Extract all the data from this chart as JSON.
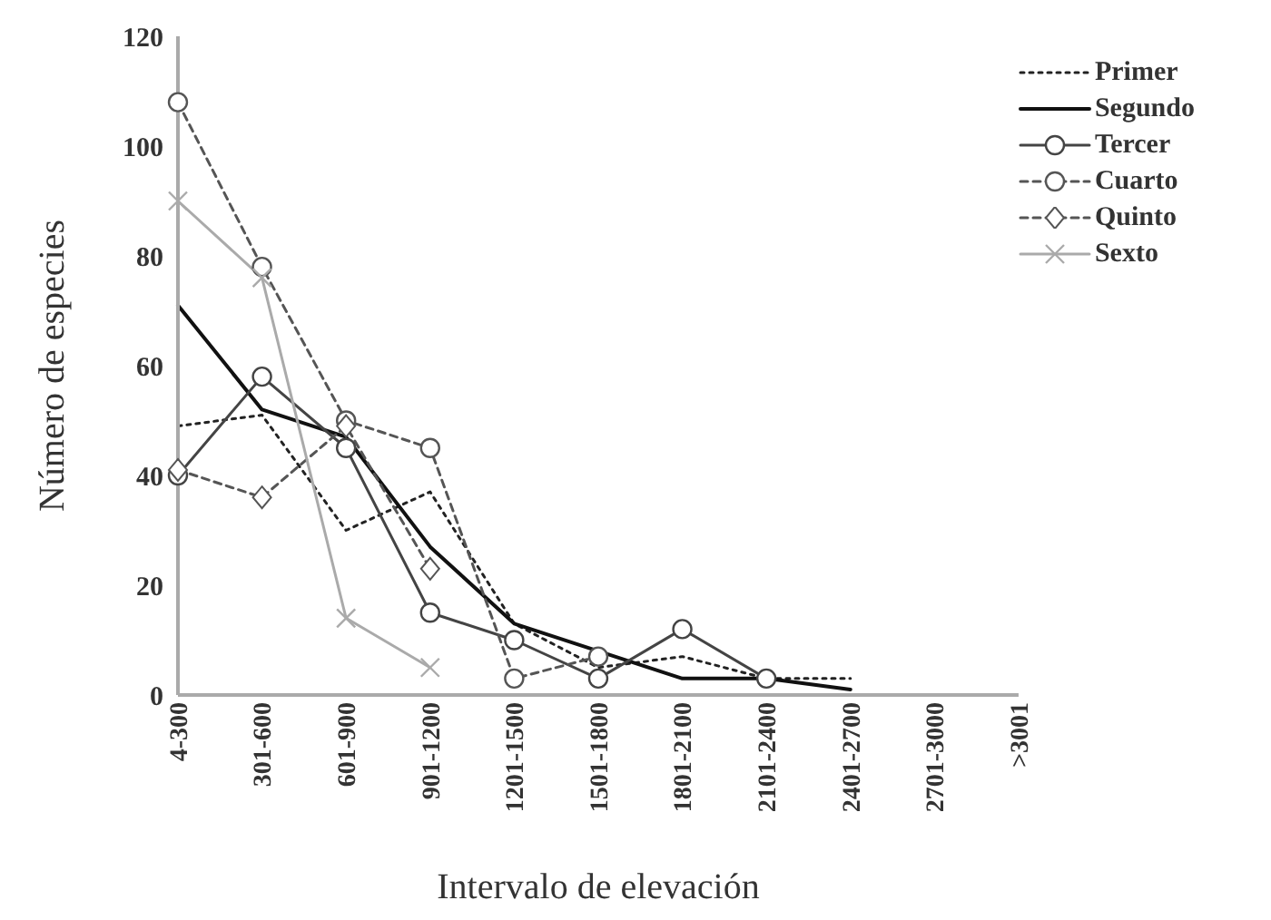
{
  "chart_data": {
    "type": "line",
    "xlabel": "Intervalo de elevación",
    "ylabel": "Número de especies",
    "categories": [
      "4-300",
      "301-600",
      "601-900",
      "901-1200",
      "1201-1500",
      "1501-1800",
      "1801-2100",
      "2101-2400",
      "2401-2700",
      "2701-3000",
      ">3001"
    ],
    "ylim": [
      0,
      120
    ],
    "yticks": [
      0,
      20,
      40,
      60,
      80,
      100,
      120
    ],
    "legend": "top right",
    "series": [
      {
        "name": "Primer",
        "color": "#222222",
        "line_style": "dotted",
        "marker": "none",
        "values": [
          49,
          51,
          30,
          37,
          13,
          5,
          7,
          3,
          3,
          null,
          null
        ]
      },
      {
        "name": "Segundo",
        "color": "#111111",
        "line_style": "solid",
        "marker": "none",
        "values": [
          71,
          52,
          47,
          27,
          13,
          8,
          3,
          3,
          1,
          null,
          null
        ]
      },
      {
        "name": "Tercer",
        "color": "#444444",
        "line_style": "solid",
        "marker": "circle",
        "values": [
          40,
          58,
          45,
          15,
          10,
          3,
          12,
          3,
          null,
          null,
          null
        ]
      },
      {
        "name": "Cuarto",
        "color": "#555555",
        "line_style": "dashed",
        "marker": "circle",
        "values": [
          108,
          78,
          50,
          45,
          3,
          7,
          null,
          null,
          null,
          null,
          null
        ]
      },
      {
        "name": "Quinto",
        "color": "#555555",
        "line_style": "dashed",
        "marker": "diamond",
        "values": [
          41,
          36,
          49,
          23,
          null,
          null,
          null,
          null,
          null,
          null,
          null
        ]
      },
      {
        "name": "Sexto",
        "color": "#aaaaaa",
        "line_style": "solid",
        "marker": "cross",
        "values": [
          90,
          76,
          14,
          5,
          null,
          null,
          null,
          null,
          null,
          null,
          null
        ]
      }
    ]
  }
}
